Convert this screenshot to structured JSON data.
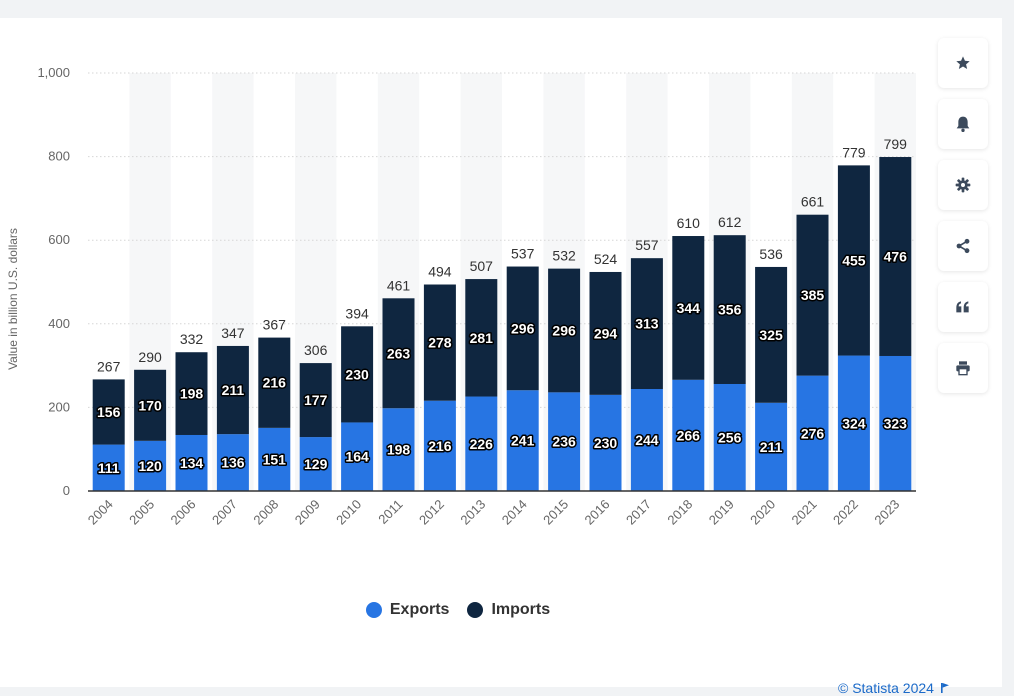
{
  "toolbar": {
    "items": [
      {
        "icon": "star-icon"
      },
      {
        "icon": "bell-icon"
      },
      {
        "icon": "gear-icon"
      },
      {
        "icon": "share-icon"
      },
      {
        "icon": "quote-icon"
      },
      {
        "icon": "print-icon"
      }
    ]
  },
  "legend": {
    "exports": "Exports",
    "imports": "Imports"
  },
  "credit": {
    "text": "© Statista 2024"
  },
  "colors": {
    "exports": "#2775e3",
    "imports": "#0f2640",
    "grid": "#d6d6d6",
    "band": "#f6f7f8"
  },
  "chart_data": {
    "type": "bar",
    "stacked": true,
    "ylabel": "Value in billion U.S. dollars",
    "ylim": [
      0,
      1000
    ],
    "yticks": [
      "0",
      "200",
      "400",
      "600",
      "800",
      "1,000"
    ],
    "categories": [
      "2004",
      "2005",
      "2006",
      "2007",
      "2008",
      "2009",
      "2010",
      "2011",
      "2012",
      "2013",
      "2014",
      "2015",
      "2016",
      "2017",
      "2018",
      "2019",
      "2020",
      "2021",
      "2022",
      "2023"
    ],
    "series": [
      {
        "name": "Exports",
        "values": [
          111,
          120,
          134,
          136,
          151,
          129,
          164,
          198,
          216,
          226,
          241,
          236,
          230,
          244,
          266,
          256,
          211,
          276,
          324,
          323
        ]
      },
      {
        "name": "Imports",
        "values": [
          156,
          170,
          198,
          211,
          216,
          177,
          230,
          263,
          278,
          281,
          296,
          296,
          294,
          313,
          344,
          356,
          325,
          385,
          455,
          476
        ]
      }
    ],
    "totals": [
      267,
      290,
      332,
      347,
      367,
      306,
      394,
      461,
      494,
      507,
      537,
      532,
      524,
      557,
      610,
      612,
      536,
      661,
      779,
      799
    ],
    "grid": true,
    "legend_position": "bottom"
  }
}
